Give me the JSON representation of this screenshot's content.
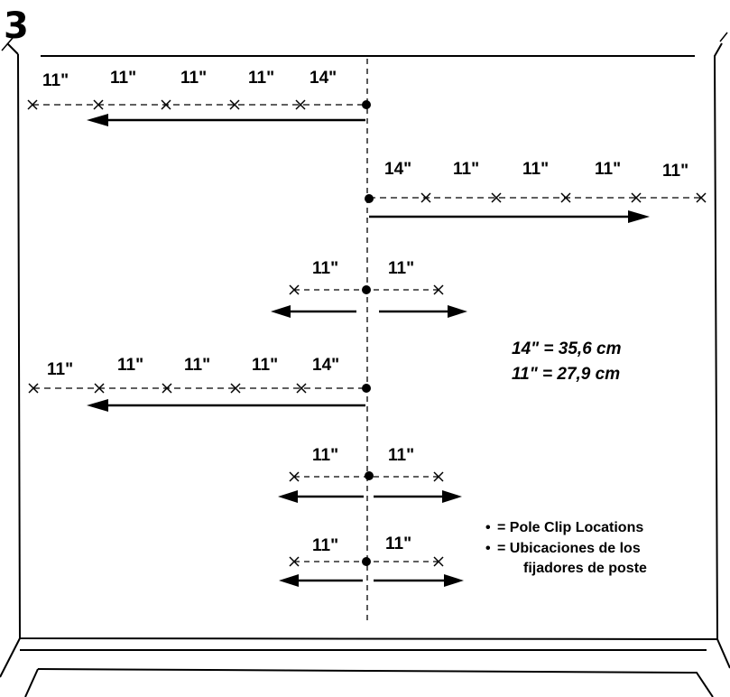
{
  "step_number": "3",
  "rows": [
    {
      "direction": "left",
      "labels": [
        "11\"",
        "11\"",
        "11\"",
        "11\"",
        "14\""
      ]
    },
    {
      "direction": "right",
      "labels": [
        "14\"",
        "11\"",
        "11\"",
        "11\"",
        "11\""
      ]
    },
    {
      "direction": "both",
      "labels": [
        "11\"",
        "11\""
      ]
    },
    {
      "direction": "left",
      "labels": [
        "11\"",
        "11\"",
        "11\"",
        "11\"",
        "14\""
      ]
    },
    {
      "direction": "both",
      "labels": [
        "11\"",
        "11\""
      ]
    },
    {
      "direction": "both",
      "labels": [
        "11\"",
        "11\""
      ]
    }
  ],
  "conversions": [
    "14\" = 35,6 cm",
    "11\" = 27,9 cm"
  ],
  "legend": {
    "symbol": "•",
    "line1": "= Pole Clip Locations",
    "line2": "= Ubicaciones de los",
    "line3": "fijadores de poste"
  }
}
